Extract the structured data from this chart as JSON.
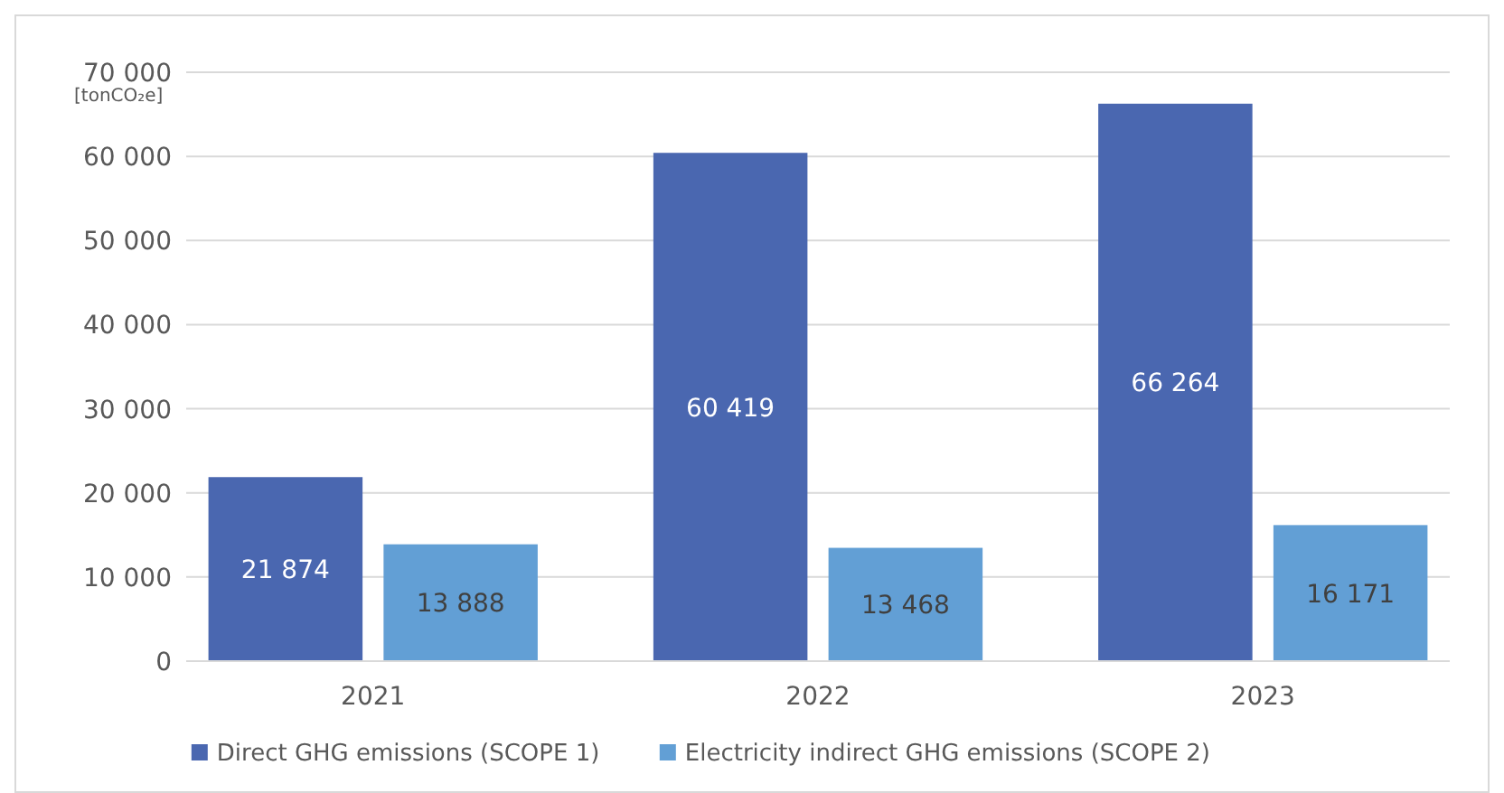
{
  "chart_data": {
    "type": "bar",
    "ylabel": "[tonCO₂e]",
    "categories": [
      "2021",
      "2022",
      "2023"
    ],
    "series": [
      {
        "name": "Direct GHG emissions (SCOPE 1)",
        "color": "#4a67b0",
        "values": [
          21874,
          60419,
          66264
        ],
        "value_labels": [
          "21 874",
          "60 419",
          "66 264"
        ]
      },
      {
        "name": "Electricity indirect GHG emissions (SCOPE 2)",
        "color": "#629fd5",
        "values": [
          13888,
          13468,
          16171
        ],
        "value_labels": [
          "13 888",
          "13 468",
          "16 171"
        ]
      }
    ],
    "ylim": [
      0,
      70000
    ],
    "yticks": [
      0,
      {
        "value": 10000,
        "label": "10 000"
      },
      {
        "value": 20000,
        "label": "20 000"
      },
      {
        "value": 30000,
        "label": "30 000"
      },
      {
        "value": 40000,
        "label": "40 000"
      },
      {
        "value": 50000,
        "label": "50 000"
      },
      {
        "value": 60000,
        "label": "60 000"
      },
      {
        "value": 70000,
        "label": "70 000"
      }
    ],
    "grid": "y",
    "legend": "bottom"
  }
}
